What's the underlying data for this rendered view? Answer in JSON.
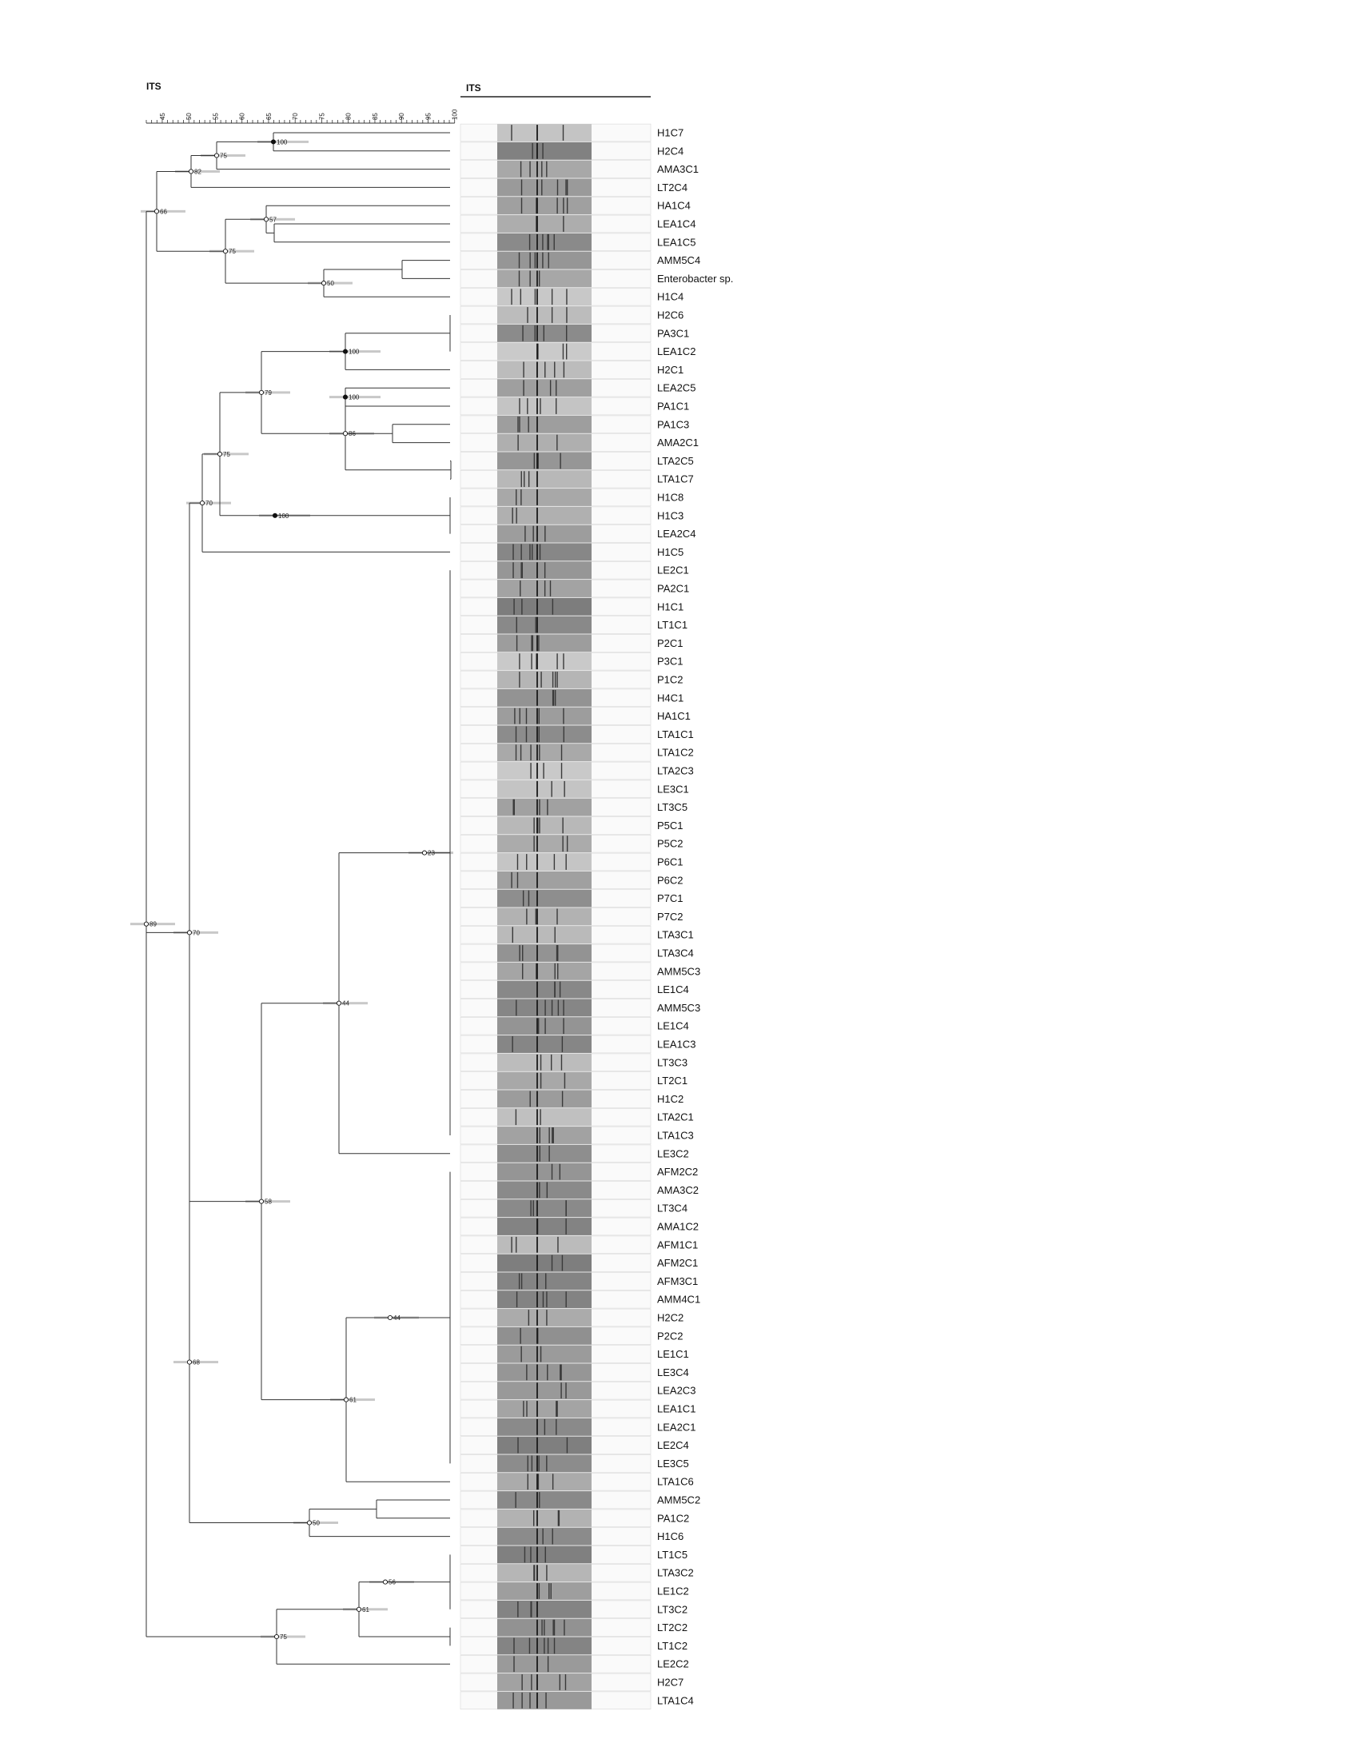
{
  "dendrogram_title": "ITS",
  "gel_title": "ITS",
  "scale_ticks": [
    "45",
    "50",
    "55",
    "60",
    "65",
    "70",
    "75",
    "80",
    "85",
    "90",
    "95",
    "100"
  ],
  "colors": {
    "line": "#333333",
    "bootstrap_bar": "#c8c8c8",
    "gel_dark": "#3a3a3a",
    "gel_light": "#e4e4e4"
  },
  "strains": [
    "H1C7",
    "H2C4",
    "AMA3C1",
    "LT2C4",
    "HA1C4",
    "LEA1C4",
    "LEA1C5",
    "AMM5C4",
    "Enterobacter sp.",
    "H1C4",
    "H2C6",
    "PA3C1",
    "LEA1C2",
    "H2C1",
    "LEA2C5",
    "PA1C1",
    "PA1C3",
    "AMA2C1",
    "LTA2C5",
    "LTA1C7",
    "H1C8",
    "H1C3",
    "LEA2C4",
    "H1C5",
    "LE2C1",
    "PA2C1",
    "H1C1",
    "LT1C1",
    "P2C1",
    "P3C1",
    "P1C2",
    "H4C1",
    "HA1C1",
    "LTA1C1",
    "LTA1C2",
    "LTA2C3",
    "LE3C1",
    "LT3C5",
    "P5C1",
    "P5C2",
    "P6C1",
    "P6C2",
    "P7C1",
    "P7C2",
    "LTA3C1",
    "LTA3C4",
    "AMM5C3",
    "LE1C4",
    "AMM5C3",
    "LE1C4",
    "LEA1C3",
    "LT3C3",
    "LT2C1",
    "H1C2",
    "LTA2C1",
    "LTA1C3",
    "LE3C2",
    "AFM2C2",
    "AMA3C2",
    "LT3C4",
    "AMA1C2",
    "AFM1C1",
    "AFM2C1",
    "AFM3C1",
    "AMM4C1",
    "H2C2",
    "P2C2",
    "LE1C1",
    "LE3C4",
    "LEA2C3",
    "LEA1C1",
    "LEA2C1",
    "LE2C4",
    "LE3C5",
    "LTA1C6",
    "AMM5C2",
    "PA1C2",
    "H1C6",
    "LT1C5",
    "LTA3C2",
    "LE1C2",
    "LT3C2",
    "LT2C2",
    "LT1C2",
    "LE2C2",
    "H2C7",
    "LTA1C4"
  ],
  "node_values": [
    "100",
    "75",
    "82",
    "66",
    "57",
    "50",
    "75",
    "100",
    "100",
    "79",
    "86",
    "75",
    "70",
    "100",
    "70",
    "68",
    "23",
    "44",
    "69",
    "58",
    "44",
    "61",
    "89",
    "50",
    "56",
    "61",
    "75"
  ]
}
